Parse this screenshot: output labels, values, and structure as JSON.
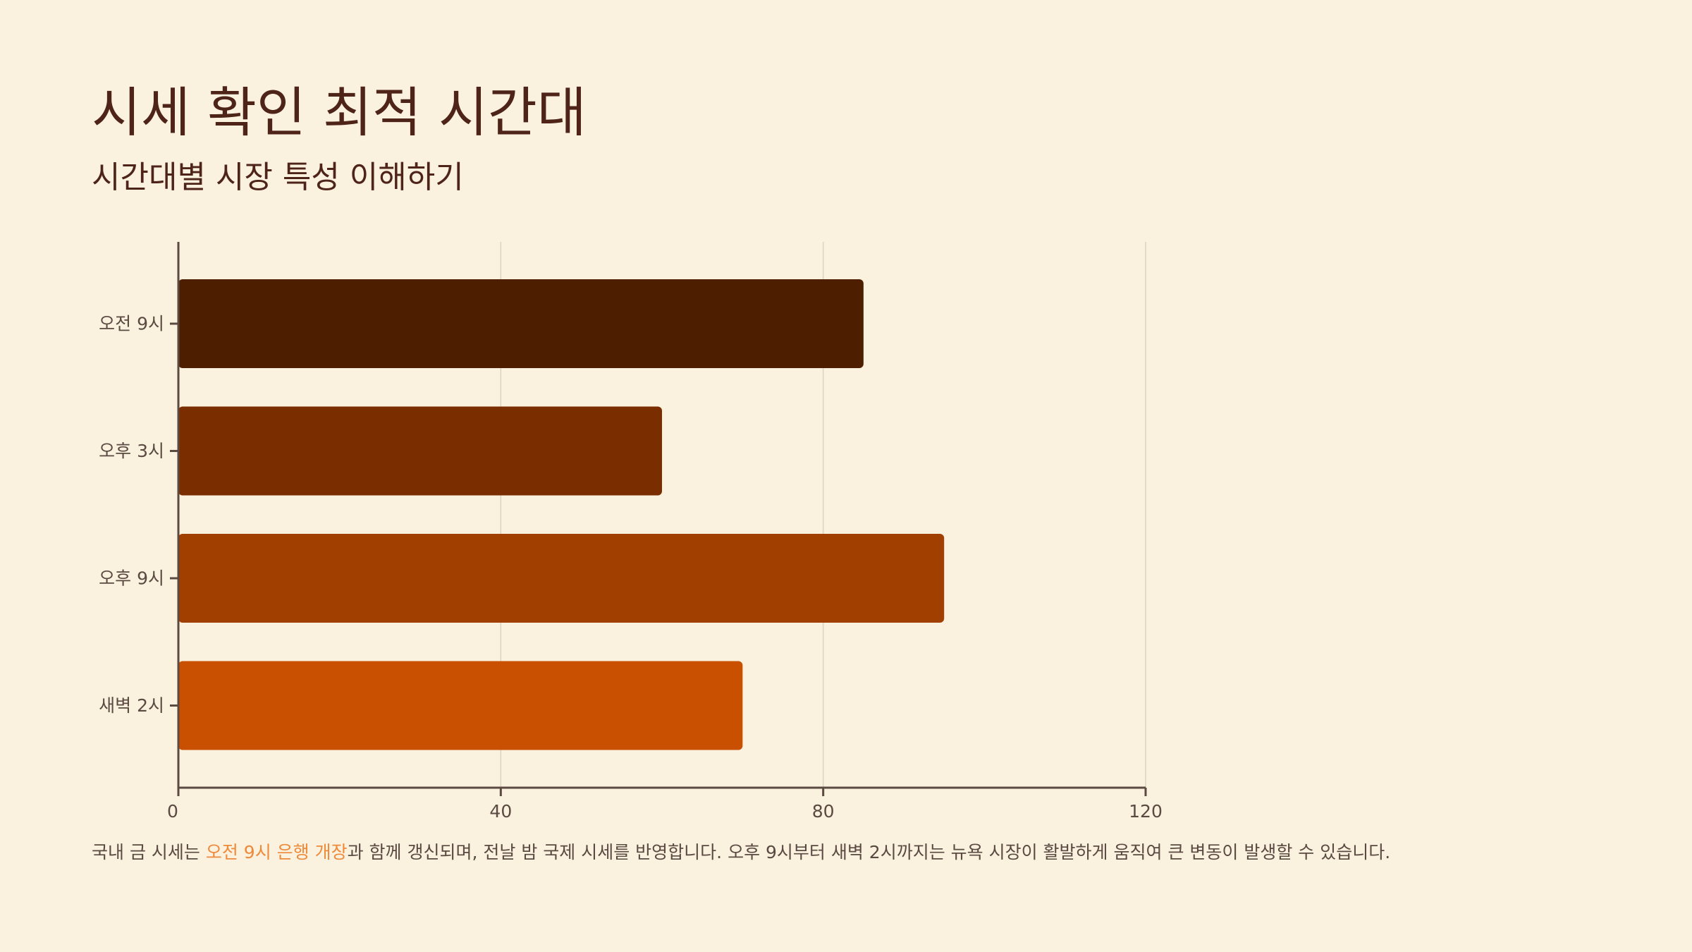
{
  "title": "시세 확인 최적 시간대",
  "subtitle": "시간대별 시장 특성 이해하기",
  "footnote": {
    "before": "국내 금 시세는 ",
    "highlight": "오전 9시 은행 개장",
    "after": "과 함께 갱신되며, 전날 밤 국제 시세를 반영합니다. 오후 9시부터 새벽 2시까지는 뉴욕 시장이 활발하게 움직여 큰 변동이 발생할 수 있습니다."
  },
  "colors": {
    "background": "#FAF1DF",
    "text": "#4E2418",
    "highlight": "#EE8A3A",
    "axis": "#5A4A42",
    "grid": "#DDD3C0"
  },
  "chart_data": {
    "type": "bar",
    "orientation": "horizontal",
    "categories": [
      "오전 9시",
      "오후 3시",
      "오후 9시",
      "새벽 2시"
    ],
    "values": [
      85,
      60,
      95,
      70
    ],
    "bar_colors": [
      "#4D1E00",
      "#7A2E00",
      "#A03F00",
      "#C95000"
    ],
    "xlim": [
      0,
      120
    ],
    "xticks": [
      0,
      40,
      80,
      120
    ],
    "grid": true
  }
}
